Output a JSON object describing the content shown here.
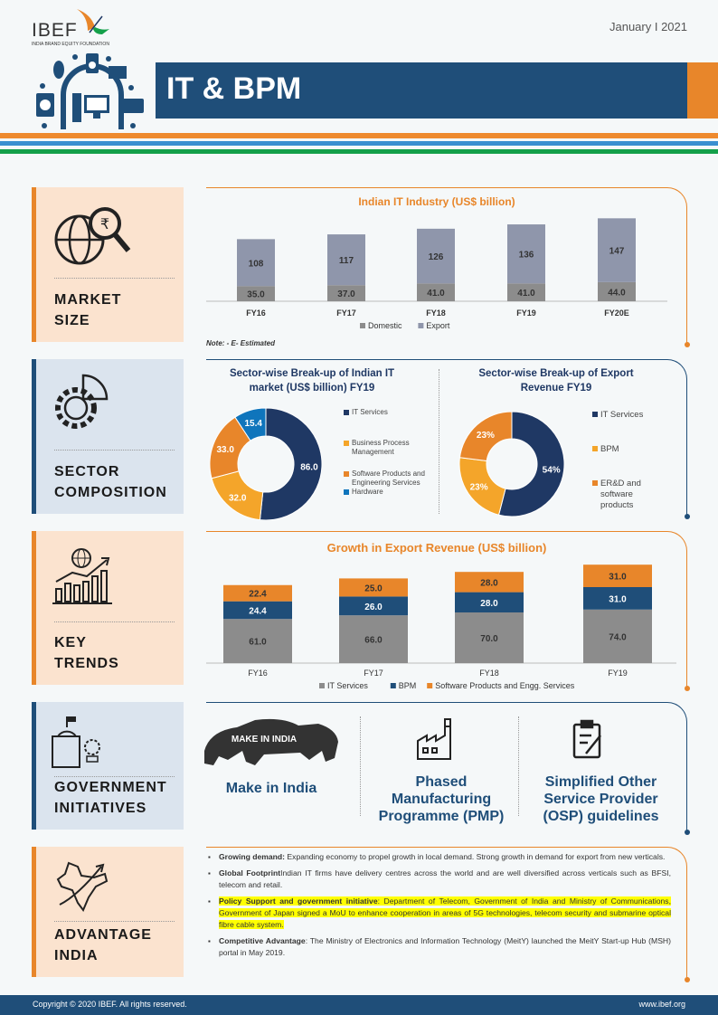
{
  "header": {
    "logo_text": "IBEF",
    "logo_sub": "INDIA BRAND EQUITY FOUNDATION",
    "date": "January I 2021",
    "title": "IT & BPM"
  },
  "colors": {
    "navy": "#1f4e79",
    "orange": "#e8862a",
    "blue_stripe": "#3a8fd0",
    "green_stripe": "#14a04a",
    "dark_navy": "#1f3864",
    "bpm": "#f4a52a",
    "hardware": "#0f75bc",
    "domestic": "#8c8c8c",
    "export": "#8f96ab",
    "it_services_gray": "#8c8c8c"
  },
  "sections": [
    {
      "label": "MARKET\nSIZE",
      "icon": "globe-rupee-magnifier-icon"
    },
    {
      "label": "SECTOR\nCOMPOSITION",
      "icon": "gear-pie-icon"
    },
    {
      "label": "KEY\nTRENDS",
      "icon": "growth-bars-globe-icon"
    },
    {
      "label": "GOVERNMENT\nINITIATIVES",
      "icon": "government-building-icon"
    },
    {
      "label": "ADVANTAGE\nINDIA",
      "icon": "india-map-icon"
    }
  ],
  "chart_data": [
    {
      "type": "bar",
      "stacked": true,
      "title": "Indian IT Industry (US$ billion)",
      "categories": [
        "FY16",
        "FY17",
        "FY18",
        "FY19",
        "FY20E"
      ],
      "series": [
        {
          "name": "Domestic",
          "values": [
            35.0,
            37.0,
            41.0,
            41.0,
            44.0
          ]
        },
        {
          "name": "Export",
          "values": [
            108,
            117,
            126,
            136,
            147
          ]
        }
      ],
      "data_labels": {
        "Domestic": [
          "35.0",
          "37.0",
          "41.0",
          "41.0",
          "44.0"
        ],
        "Export": [
          "108",
          "117",
          "126",
          "136",
          "147"
        ]
      },
      "legend": "bottom",
      "note": "Note: - E- Estimated"
    },
    {
      "type": "pie",
      "donut": true,
      "title": "Sector-wise Break-up of Indian IT market (US$ billion) FY19",
      "labels": [
        "IT Services",
        "Business Process Management",
        "Software Products and Engineering Services",
        "Hardware"
      ],
      "values": [
        86.0,
        32.0,
        33.0,
        15.4
      ],
      "data_labels": [
        "86.0",
        "32.0",
        "33.0",
        "15.4"
      ],
      "legend": "right"
    },
    {
      "type": "pie",
      "donut": true,
      "title": "Sector-wise Break-up of Export Revenue FY19",
      "labels": [
        "IT Services",
        "BPM",
        "ER&D and software products"
      ],
      "values": [
        54,
        23,
        23
      ],
      "data_labels": [
        "54%",
        "23%",
        "23%"
      ],
      "legend": "right"
    },
    {
      "type": "bar",
      "stacked": true,
      "title": "Growth in Export Revenue (US$ billion)",
      "categories": [
        "FY16",
        "FY17",
        "FY18",
        "FY19"
      ],
      "series": [
        {
          "name": "IT Services",
          "values": [
            61.0,
            66.0,
            70.0,
            74.0
          ]
        },
        {
          "name": "BPM",
          "values": [
            24.4,
            26.0,
            28.0,
            31.0
          ]
        },
        {
          "name": "Software Products and Engg. Services",
          "values": [
            22.4,
            25.0,
            28.0,
            31.0
          ]
        }
      ],
      "data_labels": {
        "IT Services": [
          "61.0",
          "66.0",
          "70.0",
          "74.0"
        ],
        "BPM": [
          "24.4",
          "26.0",
          "28.0",
          "31.0"
        ],
        "Software Products and Engg. Services": [
          "22.4",
          "25.0",
          "28.0",
          "31.0"
        ]
      },
      "legend": "bottom"
    }
  ],
  "government": [
    {
      "label": "Make in India",
      "logo_text": "MAKE IN INDIA",
      "icon": "make-in-india-lion-logo"
    },
    {
      "label": "Phased Manufacturing Programme (PMP)",
      "icon": "factory-icon"
    },
    {
      "label": "Simplified Other Service Provider (OSP) guidelines",
      "icon": "clipboard-pen-icon"
    }
  ],
  "advantage": [
    {
      "bold": "Growing demand:",
      "text": " Expanding economy to propel growth in local demand. Strong growth in demand for export from new verticals.",
      "highlight": false
    },
    {
      "bold": "Global Footprint",
      "text": "Indian IT firms have delivery centres across the world and are well diversified across verticals such as BFSI, telecom and retail.",
      "highlight": false
    },
    {
      "bold": "Policy  Support and government initiative",
      "text": ": Department of Telecom, Government of India and Ministry of Communications, Government of Japan signed a MoU to enhance cooperation in areas of 5G technologies, telecom security and submarine optical fibre cable system.",
      "highlight": true
    },
    {
      "bold": "Competitive Advantage",
      "text": ": The Ministry of Electronics and Information Technology (MeitY) launched the MeitY Start-up Hub (MSH) portal in May 2019.",
      "highlight": false
    }
  ],
  "footer": {
    "copyright": "Copyright © 2020 IBEF. All rights reserved.",
    "url": "www.ibef.org"
  }
}
